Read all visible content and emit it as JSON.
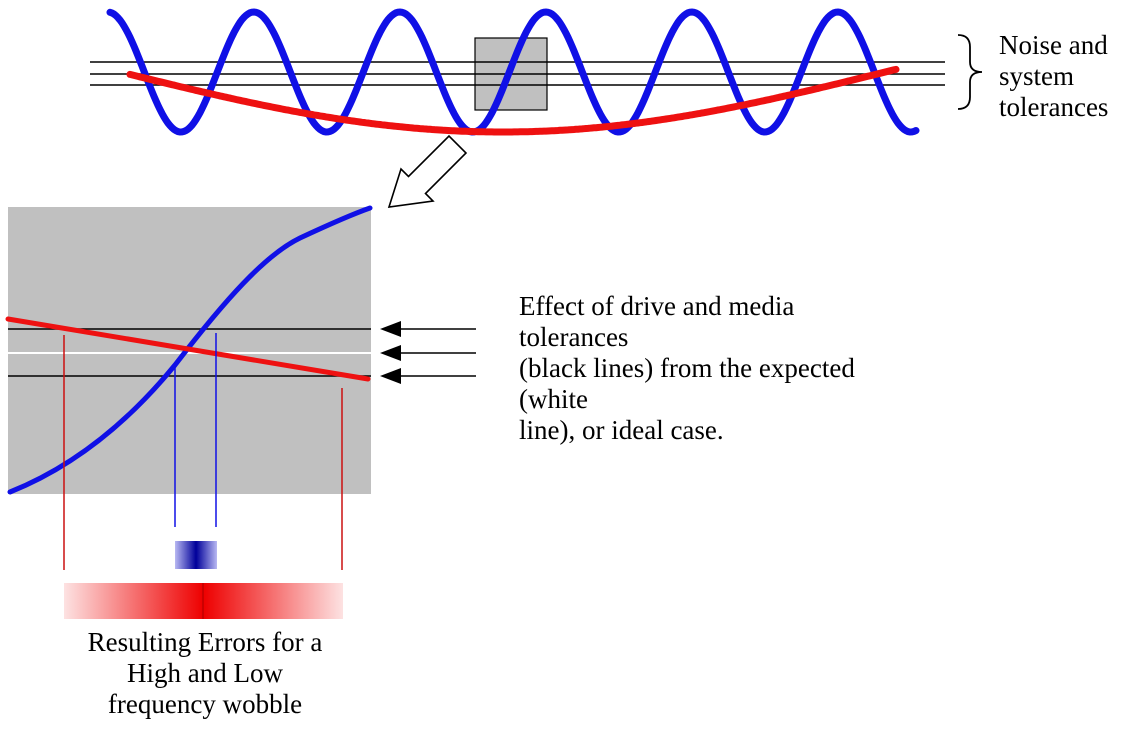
{
  "colors": {
    "high_frequency_wobble": "#1010e6",
    "low_frequency_wobble": "#ee1111",
    "tolerance_lines": "#000000",
    "expected_line": "#ffffff",
    "zoom_background": "#c0c0c0"
  },
  "labels": {
    "noise_tolerances": "Noise and\nsystem\ntolerances",
    "effect": "Effect of drive and media tolerances\n(black lines) from the expected (white\nline), or ideal case.",
    "resulting_errors": "Resulting Errors for a\nHigh and Low\nfrequency wobble"
  },
  "icons": {
    "zoom": "hollow-arrow-icon",
    "brace": "curly-brace-icon",
    "pointer": "left-arrow-icon"
  }
}
